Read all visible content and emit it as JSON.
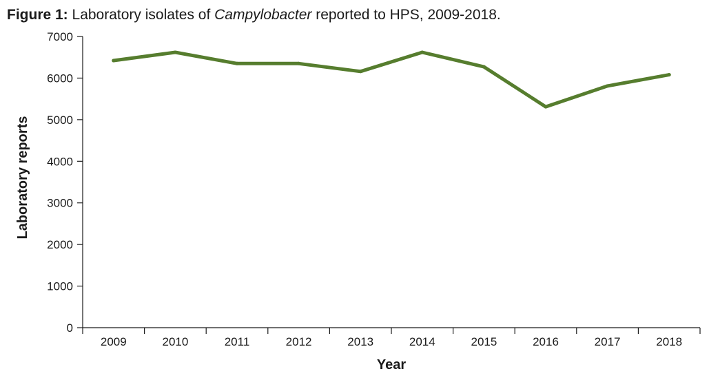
{
  "figure": {
    "label": "Figure 1:",
    "caption_before": " Laboratory isolates of ",
    "caption_italic": "Campylobacter",
    "caption_after": " reported to HPS, 2009-2018."
  },
  "colors": {
    "series_line": "#567d2e",
    "axis": "#1a1a1a"
  },
  "chart_data": {
    "type": "line",
    "xlabel": "Year",
    "ylabel": "Laboratory reports",
    "ylim": [
      0,
      7000
    ],
    "yticks": [
      0,
      1000,
      2000,
      3000,
      4000,
      5000,
      6000,
      7000
    ],
    "grid": false,
    "categories": [
      "2009",
      "2010",
      "2011",
      "2012",
      "2013",
      "2014",
      "2015",
      "2016",
      "2017",
      "2018"
    ],
    "series": [
      {
        "values": [
          6420,
          6620,
          6350,
          6350,
          6160,
          6620,
          6270,
          5310,
          5810,
          6080
        ]
      }
    ]
  }
}
